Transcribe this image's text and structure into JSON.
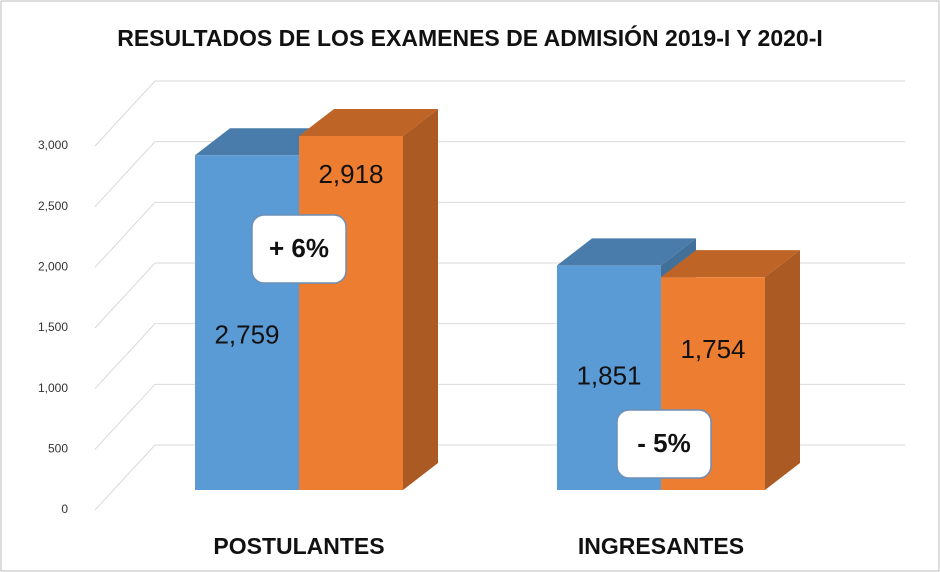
{
  "chart_data": {
    "type": "bar",
    "title": "RESULTADOS DE LOS EXAMENES DE ADMISIÓN 2019-I Y 2020-I",
    "categories": [
      "POSTULANTES",
      "INGRESANTES"
    ],
    "series": [
      {
        "color": "#5b9bd5",
        "values": [
          2759,
          1851
        ],
        "value_labels": [
          "2,759",
          "1,851"
        ]
      },
      {
        "color": "#ed7d31",
        "values": [
          2918,
          1754
        ],
        "value_labels": [
          "2,918",
          "1,754"
        ]
      }
    ],
    "annotations": [
      "+ 6%",
      "- 5%"
    ],
    "ylim": [
      0,
      3000
    ],
    "yticks": [
      0,
      500,
      {
        "value": 1000,
        "label": "1,000"
      },
      {
        "value": 1500,
        "label": "1,500"
      },
      {
        "value": 2000,
        "label": "2,000"
      },
      {
        "value": 2500,
        "label": "2,500"
      },
      {
        "value": 3000,
        "label": "3,000"
      }
    ],
    "grid": true
  }
}
